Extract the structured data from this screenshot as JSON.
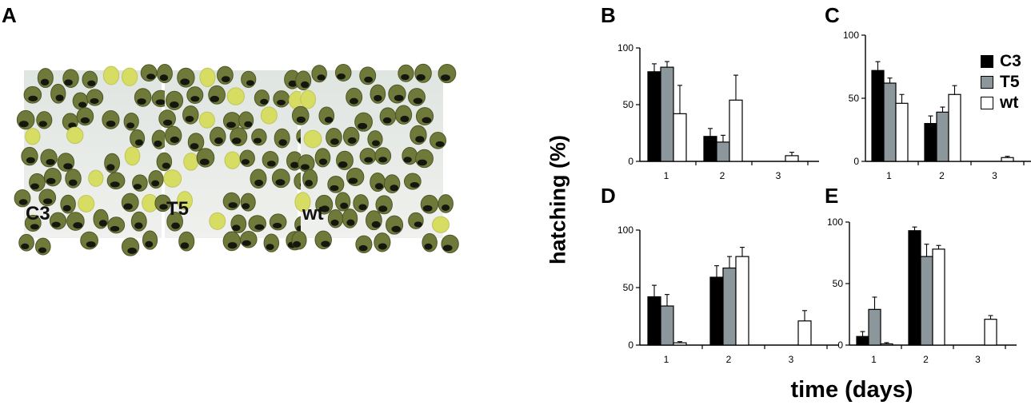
{
  "panel_labels": {
    "a": "A",
    "b": "B",
    "c": "C",
    "d": "D",
    "e": "E"
  },
  "photos": [
    {
      "label": "C3"
    },
    {
      "label": "T5"
    },
    {
      "label": "wt"
    }
  ],
  "axis_labels": {
    "y": "hatching (%)",
    "x": "time (days)"
  },
  "legend": [
    {
      "label": "C3",
      "color": "#000000"
    },
    {
      "label": "T5",
      "color": "#8c979c"
    },
    {
      "label": "wt",
      "color": "#ffffff"
    }
  ],
  "chart_data": [
    {
      "panel": "B",
      "type": "bar",
      "categories": [
        "1",
        "2",
        "3"
      ],
      "ylim": [
        0,
        100
      ],
      "yticks": [
        0,
        50,
        100
      ],
      "series": [
        {
          "name": "C3",
          "values": [
            79,
            22,
            0
          ],
          "errors": [
            7,
            7,
            0
          ]
        },
        {
          "name": "T5",
          "values": [
            83,
            17,
            0
          ],
          "errors": [
            5,
            6,
            0
          ]
        },
        {
          "name": "wt",
          "values": [
            42,
            54,
            5
          ],
          "errors": [
            25,
            22,
            3
          ]
        }
      ]
    },
    {
      "panel": "C",
      "type": "bar",
      "categories": [
        "1",
        "2",
        "3"
      ],
      "ylim": [
        0,
        100
      ],
      "yticks": [
        0,
        50,
        100
      ],
      "series": [
        {
          "name": "C3",
          "values": [
            72,
            30,
            0
          ],
          "errors": [
            7,
            6,
            0
          ]
        },
        {
          "name": "T5",
          "values": [
            62,
            39,
            0
          ],
          "errors": [
            4,
            4,
            0
          ]
        },
        {
          "name": "wt",
          "values": [
            46,
            53,
            3
          ],
          "errors": [
            7,
            7,
            1
          ]
        }
      ]
    },
    {
      "panel": "D",
      "type": "bar",
      "categories": [
        "1",
        "2",
        "3"
      ],
      "ylim": [
        0,
        100
      ],
      "yticks": [
        0,
        50,
        100
      ],
      "series": [
        {
          "name": "C3",
          "values": [
            42,
            59,
            0
          ],
          "errors": [
            10,
            10,
            0
          ]
        },
        {
          "name": "T5",
          "values": [
            34,
            67,
            0
          ],
          "errors": [
            10,
            10,
            0
          ]
        },
        {
          "name": "wt",
          "values": [
            2,
            77,
            21
          ],
          "errors": [
            1,
            8,
            9
          ]
        }
      ]
    },
    {
      "panel": "E",
      "type": "bar",
      "categories": [
        "1",
        "2",
        "3"
      ],
      "ylim": [
        0,
        100
      ],
      "yticks": [
        0,
        50,
        100
      ],
      "series": [
        {
          "name": "C3",
          "values": [
            7,
            93,
            0
          ],
          "errors": [
            4,
            3,
            0
          ]
        },
        {
          "name": "T5",
          "values": [
            29,
            72,
            0
          ],
          "errors": [
            10,
            10,
            0
          ]
        },
        {
          "name": "wt",
          "values": [
            1,
            78,
            21
          ],
          "errors": [
            1,
            3,
            3
          ]
        }
      ]
    }
  ]
}
